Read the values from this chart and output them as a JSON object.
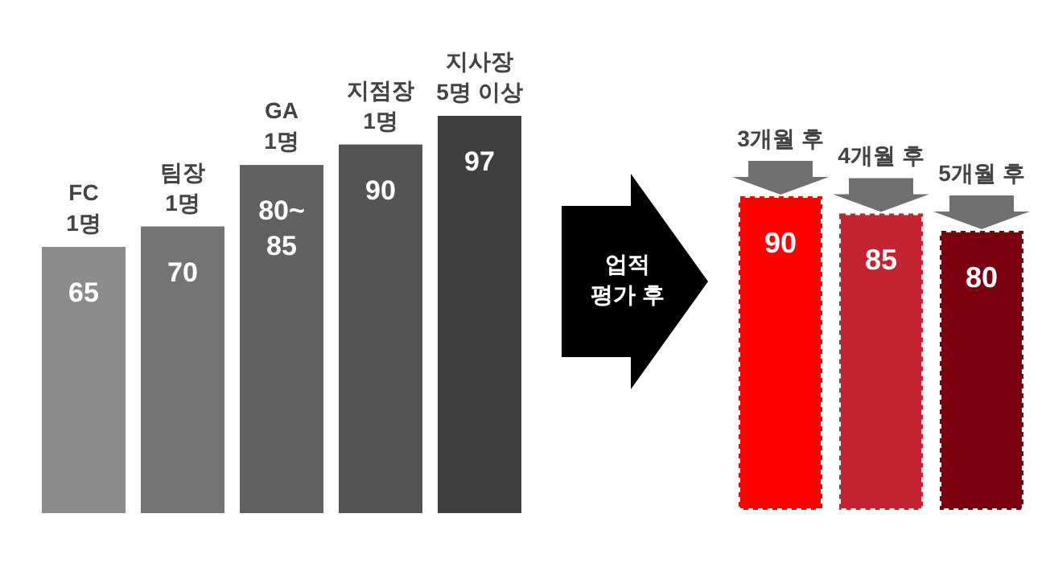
{
  "chart_data": [
    {
      "type": "bar",
      "categories": [
        "FC\n1명",
        "팀장\n1명",
        "GA\n1명",
        "지점장\n1명",
        "지사장\n5명 이상"
      ],
      "values": [
        65,
        70,
        85,
        90,
        97
      ],
      "value_labels": [
        "65",
        "70",
        "80~\n85",
        "90",
        "97"
      ],
      "colors": [
        "#8c8c8c",
        "#747474",
        "#616161",
        "#545454",
        "#3f3f3f"
      ]
    },
    {
      "type": "bar",
      "categories": [
        "3개월 후",
        "4개월 후",
        "5개월 후"
      ],
      "values": [
        90,
        85,
        80
      ],
      "data_labels": true,
      "colors": [
        "#ff0000",
        "#c42432",
        "#7a0010"
      ],
      "annotations": [
        "업적\n평가 후"
      ]
    }
  ]
}
